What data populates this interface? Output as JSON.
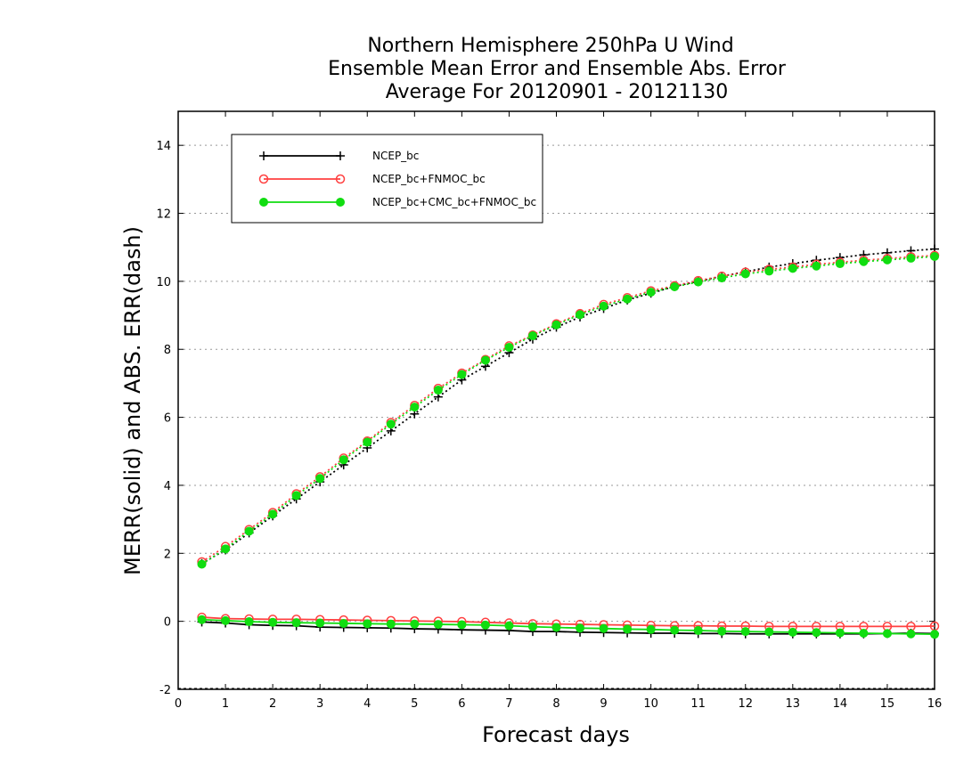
{
  "chart_data": {
    "type": "line",
    "title": [
      "Northern Hemisphere 250hPa U Wind",
      "Ensemble Mean Error and Ensemble Abs. Error",
      "Average For 20120901 - 20121130"
    ],
    "xlabel": "Forecast days",
    "ylabel": "MERR(solid) and ABS. ERR(dash)",
    "xlim": [
      0,
      16
    ],
    "ylim": [
      -2,
      15
    ],
    "xticks": [
      "0",
      "1",
      "2",
      "3",
      "4",
      "5",
      "6",
      "7",
      "8",
      "9",
      "10",
      "11",
      "12",
      "13",
      "14",
      "15",
      "16"
    ],
    "yticks": [
      "-2",
      "0",
      "2",
      "4",
      "6",
      "8",
      "10",
      "12",
      "14"
    ],
    "grid": "horizontal-dotted",
    "legend_position": "top-left",
    "x": [
      0.5,
      1,
      1.5,
      2,
      2.5,
      3,
      3.5,
      4,
      4.5,
      5,
      5.5,
      6,
      6.5,
      7,
      7.5,
      8,
      8.5,
      9,
      9.5,
      10,
      10.5,
      11,
      11.5,
      12,
      12.5,
      13,
      13.5,
      14,
      14.5,
      15,
      15.5,
      16
    ],
    "series": [
      {
        "name": "NCEP_bc",
        "color": "#000000",
        "marker": "plus",
        "abs_err": [
          1.7,
          2.1,
          2.6,
          3.1,
          3.6,
          4.1,
          4.6,
          5.1,
          5.6,
          6.1,
          6.6,
          7.1,
          7.5,
          7.9,
          8.3,
          8.65,
          8.95,
          9.2,
          9.45,
          9.65,
          9.85,
          10.0,
          10.15,
          10.28,
          10.42,
          10.52,
          10.62,
          10.7,
          10.78,
          10.84,
          10.9,
          10.95
        ],
        "mean_err": [
          -0.02,
          -0.05,
          -0.1,
          -0.12,
          -0.13,
          -0.17,
          -0.18,
          -0.19,
          -0.2,
          -0.22,
          -0.23,
          -0.25,
          -0.26,
          -0.27,
          -0.3,
          -0.3,
          -0.32,
          -0.33,
          -0.34,
          -0.35,
          -0.35,
          -0.36,
          -0.36,
          -0.37,
          -0.37,
          -0.37,
          -0.37,
          -0.37,
          -0.37,
          -0.36,
          -0.35,
          -0.36
        ]
      },
      {
        "name": "NCEP_bc+FNMOC_bc",
        "color": "#ff4040",
        "marker": "open-circle",
        "abs_err": [
          1.75,
          2.2,
          2.7,
          3.2,
          3.75,
          4.25,
          4.8,
          5.3,
          5.85,
          6.35,
          6.85,
          7.3,
          7.7,
          8.1,
          8.42,
          8.75,
          9.05,
          9.32,
          9.52,
          9.72,
          9.87,
          10.02,
          10.15,
          10.27,
          10.35,
          10.42,
          10.5,
          10.56,
          10.62,
          10.67,
          10.72,
          10.76
        ],
        "mean_err": [
          0.12,
          0.08,
          0.07,
          0.06,
          0.06,
          0.05,
          0.04,
          0.03,
          0.02,
          0.01,
          0.0,
          -0.01,
          -0.03,
          -0.05,
          -0.07,
          -0.08,
          -0.09,
          -0.1,
          -0.11,
          -0.12,
          -0.13,
          -0.13,
          -0.14,
          -0.14,
          -0.15,
          -0.15,
          -0.15,
          -0.15,
          -0.15,
          -0.15,
          -0.15,
          -0.14
        ]
      },
      {
        "name": "NCEP_bc+CMC_bc+FNMOC_bc",
        "color": "#10dd10",
        "marker": "filled-circle",
        "abs_err": [
          1.68,
          2.13,
          2.65,
          3.15,
          3.7,
          4.2,
          4.75,
          5.27,
          5.8,
          6.3,
          6.8,
          7.26,
          7.68,
          8.06,
          8.4,
          8.72,
          9.02,
          9.27,
          9.48,
          9.68,
          9.84,
          9.98,
          10.1,
          10.22,
          10.3,
          10.38,
          10.45,
          10.52,
          10.58,
          10.63,
          10.68,
          10.73
        ],
        "mean_err": [
          0.05,
          0.02,
          -0.01,
          -0.03,
          -0.04,
          -0.05,
          -0.06,
          -0.07,
          -0.08,
          -0.08,
          -0.09,
          -0.1,
          -0.11,
          -0.13,
          -0.16,
          -0.18,
          -0.2,
          -0.21,
          -0.23,
          -0.24,
          -0.26,
          -0.27,
          -0.29,
          -0.3,
          -0.31,
          -0.32,
          -0.33,
          -0.34,
          -0.35,
          -0.36,
          -0.37,
          -0.38
        ]
      }
    ]
  }
}
